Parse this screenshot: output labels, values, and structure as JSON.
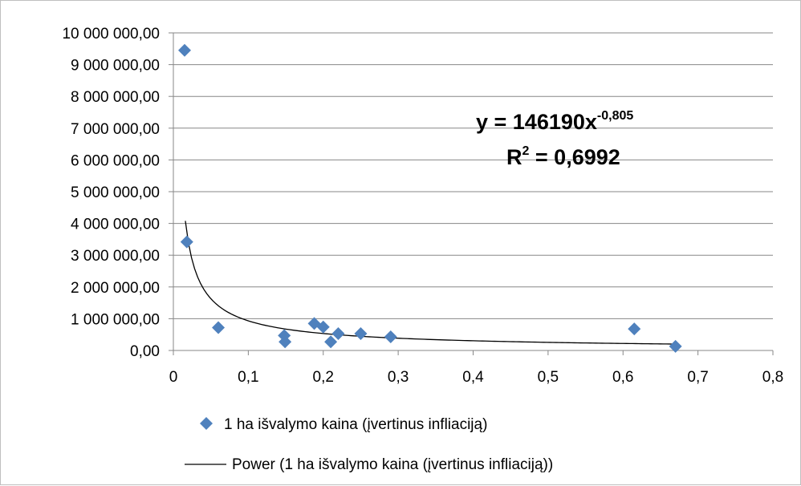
{
  "chart_data": {
    "type": "scatter",
    "title": "",
    "xlabel": "",
    "ylabel": "",
    "xlim": [
      0,
      0.8
    ],
    "ylim": [
      0,
      10000000
    ],
    "x_ticks": [
      0,
      0.1,
      0.2,
      0.3,
      0.4,
      0.5,
      0.6,
      0.7,
      0.8
    ],
    "x_tick_labels": [
      "0",
      "0,1",
      "0,2",
      "0,3",
      "0,4",
      "0,5",
      "0,6",
      "0,7",
      "0,8"
    ],
    "y_ticks": [
      0,
      1000000,
      2000000,
      3000000,
      4000000,
      5000000,
      6000000,
      7000000,
      8000000,
      9000000,
      10000000
    ],
    "y_tick_labels": [
      "0,00",
      "1 000 000,00",
      "2 000 000,00",
      "3 000 000,00",
      "4 000 000,00",
      "5 000 000,00",
      "6 000 000,00",
      "7 000 000,00",
      "8 000 000,00",
      "9 000 000,00",
      "10 000 000,00"
    ],
    "grid": {
      "horizontal": true,
      "vertical": false
    },
    "legend_position": "bottom",
    "colors": {
      "points": "#4f81bd",
      "trendline": "#000000",
      "grid": "#878787",
      "axis": "#878787"
    },
    "series": [
      {
        "name": "1 ha išvalymo kaina (įvertinus infliaciją)",
        "kind": "scatter",
        "marker": "diamond",
        "points": [
          {
            "x": 0.015,
            "y": 9450000
          },
          {
            "x": 0.018,
            "y": 3420000
          },
          {
            "x": 0.06,
            "y": 720000
          },
          {
            "x": 0.148,
            "y": 470000
          },
          {
            "x": 0.149,
            "y": 270000
          },
          {
            "x": 0.188,
            "y": 850000
          },
          {
            "x": 0.2,
            "y": 740000
          },
          {
            "x": 0.21,
            "y": 270000
          },
          {
            "x": 0.22,
            "y": 530000
          },
          {
            "x": 0.25,
            "y": 530000
          },
          {
            "x": 0.29,
            "y": 430000
          },
          {
            "x": 0.615,
            "y": 680000
          },
          {
            "x": 0.67,
            "y": 130000
          }
        ]
      },
      {
        "name": "Power (1 ha išvalymo kaina (įvertinus infliaciją))",
        "kind": "trendline",
        "model": "power",
        "coefficient": 146190,
        "exponent": -0.805,
        "x_range": [
          0.016,
          0.67
        ]
      }
    ],
    "annotations": {
      "equation_base": "y = 146190x",
      "equation_exponent": "-0,805",
      "r_squared_label": "R",
      "r_squared_sup": "2",
      "r_squared_value": " = 0,6992"
    }
  }
}
